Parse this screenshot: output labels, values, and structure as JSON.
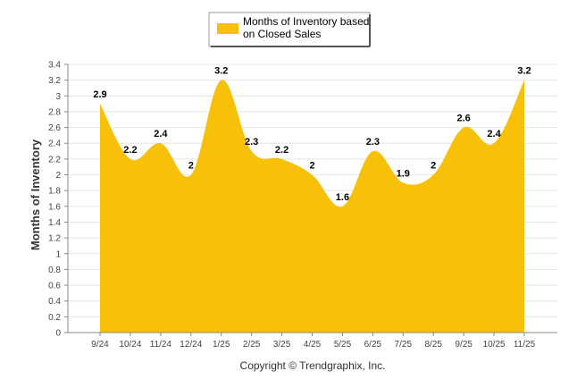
{
  "chart_data": {
    "type": "area",
    "categories": [
      "9/24",
      "10/24",
      "11/24",
      "12/24",
      "1/25",
      "2/25",
      "3/25",
      "4/25",
      "5/25",
      "6/25",
      "7/25",
      "8/25",
      "9/25",
      "10/25",
      "11/25"
    ],
    "series": [
      {
        "name": "Months of Inventory based on Closed Sales",
        "values": [
          2.9,
          2.2,
          2.4,
          2,
          3.2,
          2.3,
          2.2,
          2,
          1.6,
          2.3,
          1.9,
          2,
          2.6,
          2.4,
          3.2
        ]
      }
    ],
    "data_labels": [
      "2.9",
      "2.2",
      "2.4",
      "2",
      "3.2",
      "2.3",
      "2.2",
      "2",
      "1.6",
      "2.3",
      "1.9",
      "2",
      "2.6",
      "2.4",
      "3.2"
    ],
    "ylabel": "Months of Inventory",
    "xlabel": "",
    "ylim": [
      0,
      3.4
    ],
    "yticks": [
      "0",
      "0.2",
      "0.4",
      "0.6",
      "0.8",
      "1",
      "1.2",
      "1.4",
      "1.6",
      "1.8",
      "2",
      "2.2",
      "2.4",
      "2.6",
      "2.8",
      "3",
      "3.2",
      "3.4"
    ],
    "grid": true,
    "legend_position": "top-center",
    "series_color": "#F7C10A",
    "credit": "Copyright © Trendgraphix, Inc."
  },
  "legend": {
    "line1": "Months of Inventory based",
    "line2": "on Closed Sales"
  }
}
